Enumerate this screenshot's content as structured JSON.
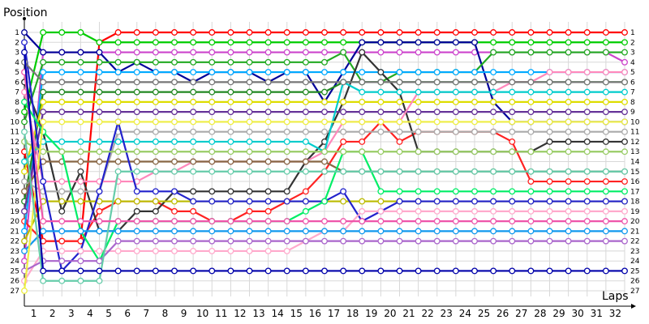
{
  "chart_data": {
    "type": "line",
    "ylabel": "Position",
    "xlabel": "Laps",
    "x": [
      0,
      1,
      2,
      3,
      4,
      5,
      6,
      7,
      8,
      9,
      10,
      11,
      12,
      13,
      14,
      15,
      16,
      17,
      18,
      19,
      20,
      21,
      22,
      23,
      24,
      25,
      26,
      27,
      28,
      29,
      30,
      31,
      32
    ],
    "x_tick_labels": [
      "1",
      "2",
      "3",
      "4",
      "5",
      "6",
      "7",
      "8",
      "9",
      "10",
      "11",
      "12",
      "13",
      "14",
      "15",
      "16",
      "17",
      "18",
      "19",
      "20",
      "21",
      "22",
      "23",
      "24",
      "25",
      "26",
      "27",
      "28",
      "29",
      "30",
      "31",
      "32"
    ],
    "y_tick_labels": [
      "1",
      "2",
      "3",
      "4",
      "5",
      "6",
      "7",
      "8",
      "9",
      "10",
      "11",
      "12",
      "13",
      "14",
      "15",
      "16",
      "17",
      "18",
      "19",
      "20",
      "21",
      "22",
      "23",
      "24",
      "25",
      "26",
      "27"
    ],
    "xlim": [
      0,
      32
    ],
    "ylim": [
      1,
      27
    ],
    "y_inverted": true,
    "grid": true,
    "series": [
      {
        "color": "#ff0000",
        "values": [
          13,
          22,
          22,
          22,
          2,
          1,
          1,
          1,
          1,
          1,
          1,
          1,
          1,
          1,
          1,
          1,
          1,
          1,
          1,
          1,
          1,
          1,
          1,
          1,
          1,
          1,
          1,
          1,
          1,
          1,
          1,
          1,
          1
        ]
      },
      {
        "color": "#00cc00",
        "values": [
          9,
          1,
          1,
          1,
          2,
          2,
          2,
          2,
          2,
          2,
          2,
          2,
          2,
          2,
          2,
          2,
          2,
          2,
          2,
          2,
          2,
          2,
          2,
          2,
          2,
          2,
          2,
          2,
          2,
          2,
          2,
          2,
          2
        ]
      },
      {
        "color": "#cc44cc",
        "values": [
          24,
          3,
          3,
          3,
          3,
          3,
          3,
          3,
          3,
          3,
          3,
          3,
          3,
          3,
          3,
          3,
          3,
          3,
          3,
          3,
          3,
          3,
          3,
          3,
          3,
          3,
          3,
          3,
          3,
          3,
          3,
          3,
          4
        ]
      },
      {
        "color": "#000099",
        "values": [
          1,
          3,
          3,
          3,
          3,
          5,
          4,
          5,
          5,
          6,
          5,
          5,
          5,
          6,
          5,
          5,
          8,
          5,
          2,
          2,
          2,
          2,
          2,
          2,
          2,
          8,
          10,
          10,
          10,
          10,
          10,
          10,
          10
        ]
      },
      {
        "color": "#ff2222",
        "values": [
          20,
          22,
          22,
          22,
          19,
          18,
          18,
          18,
          19,
          19,
          20,
          20,
          19,
          19,
          18,
          17,
          15,
          12,
          12,
          10,
          12,
          11,
          11,
          11,
          11,
          11,
          12,
          16,
          16,
          16,
          16,
          16,
          16
        ]
      },
      {
        "color": "#22aa22",
        "values": [
          10,
          4,
          4,
          4,
          4,
          4,
          4,
          4,
          4,
          4,
          4,
          4,
          4,
          4,
          4,
          4,
          4,
          3,
          6,
          6,
          5,
          5,
          5,
          5,
          5,
          3,
          3,
          3,
          3,
          3,
          3,
          3,
          3
        ]
      },
      {
        "color": "#00aaff",
        "values": [
          21,
          5,
          5,
          5,
          5,
          5,
          5,
          5,
          5,
          5,
          5,
          5,
          5,
          5,
          5,
          5,
          5,
          5,
          5,
          5,
          5,
          5,
          5,
          5,
          5,
          5,
          5,
          5,
          5,
          5,
          5,
          5,
          5
        ]
      },
      {
        "color": "#228822",
        "values": [
          18,
          7,
          7,
          7,
          7,
          7,
          7,
          7,
          7,
          7,
          7,
          7,
          7,
          7,
          7,
          7,
          7,
          6,
          6,
          6,
          6,
          6,
          6,
          6,
          6,
          6,
          6,
          6,
          6,
          6,
          6,
          6,
          6
        ]
      },
      {
        "color": "#333333",
        "values": [
          6,
          11,
          19,
          15,
          21,
          21,
          19,
          19,
          17,
          17,
          17,
          17,
          17,
          17,
          17,
          14,
          12,
          8,
          3,
          5,
          7,
          13,
          13,
          13,
          13,
          13,
          13,
          13,
          12,
          12,
          12,
          12,
          12
        ]
      },
      {
        "color": "#dddd00",
        "values": [
          15,
          8,
          8,
          8,
          8,
          8,
          8,
          8,
          8,
          8,
          8,
          8,
          8,
          8,
          8,
          8,
          8,
          8,
          8,
          8,
          8,
          8,
          8,
          8,
          8,
          8,
          8,
          8,
          8,
          8,
          8,
          8,
          8
        ]
      },
      {
        "color": "#aaaaaa",
        "values": [
          16,
          17,
          17,
          17,
          17,
          11,
          11,
          11,
          11,
          11,
          11,
          11,
          11,
          11,
          11,
          11,
          11,
          11,
          11,
          11,
          11,
          11,
          11,
          11,
          11,
          11,
          11,
          11,
          11,
          11,
          11,
          11,
          11
        ]
      },
      {
        "color": "#663399",
        "values": [
          19,
          9,
          9,
          9,
          9,
          9,
          9,
          9,
          9,
          9,
          9,
          9,
          9,
          9,
          9,
          9,
          9,
          9,
          9,
          9,
          9,
          9,
          9,
          9,
          9,
          9,
          9,
          9,
          9,
          9,
          9,
          9,
          9
        ]
      },
      {
        "color": "#ff88bb",
        "values": [
          7,
          16,
          16,
          16,
          16,
          16,
          16,
          15,
          15,
          14,
          14,
          14,
          14,
          14,
          14,
          14,
          13,
          10,
          10,
          10,
          10,
          7,
          7,
          7,
          7,
          7,
          6,
          6,
          5,
          5,
          5,
          5,
          5
        ]
      },
      {
        "color": "#00cccc",
        "values": [
          14,
          12,
          12,
          12,
          12,
          12,
          12,
          12,
          12,
          12,
          12,
          12,
          12,
          12,
          12,
          12,
          13,
          6,
          7,
          7,
          7,
          7,
          7,
          7,
          7,
          7,
          7,
          7,
          7,
          7,
          7,
          7,
          7
        ]
      },
      {
        "color": "#bbbb00",
        "values": [
          22,
          18,
          18,
          18,
          18,
          18,
          18,
          18,
          18,
          18,
          18,
          18,
          18,
          18,
          18,
          18,
          18,
          18,
          18,
          18,
          18,
          18,
          18,
          18,
          18,
          18,
          18,
          18,
          18,
          18,
          18,
          18,
          18
        ]
      },
      {
        "color": "#886644",
        "values": [
          17,
          14,
          14,
          14,
          14,
          14,
          14,
          14,
          14,
          14,
          14,
          14,
          14,
          14,
          14,
          14,
          14,
          15,
          15,
          15,
          15,
          15,
          15,
          15,
          15,
          15,
          15,
          15,
          15,
          15,
          15,
          15,
          15
        ]
      },
      {
        "color": "#2222cc",
        "values": [
          2,
          16,
          25,
          23,
          17,
          10,
          17,
          17,
          17,
          18,
          18,
          18,
          18,
          18,
          18,
          18,
          18,
          17,
          20,
          19,
          18,
          18,
          18,
          18,
          18,
          18,
          18,
          18,
          18,
          18,
          18,
          18,
          18
        ]
      },
      {
        "color": "#ffaacc",
        "values": [
          26,
          23,
          23,
          23,
          23,
          23,
          23,
          23,
          23,
          23,
          23,
          23,
          23,
          23,
          23,
          22,
          21,
          21,
          19,
          19,
          19,
          19,
          19,
          19,
          19,
          19,
          19,
          19,
          19,
          19,
          19,
          19,
          19
        ]
      },
      {
        "color": "#00ee66",
        "values": [
          8,
          11,
          13,
          21,
          24,
          20,
          20,
          20,
          20,
          20,
          20,
          20,
          20,
          20,
          20,
          19,
          18,
          13,
          13,
          17,
          17,
          17,
          17,
          17,
          17,
          17,
          17,
          17,
          17,
          17,
          17,
          17,
          17
        ]
      },
      {
        "color": "#aa66cc",
        "values": [
          25,
          24,
          24,
          24,
          24,
          22,
          22,
          22,
          22,
          22,
          22,
          22,
          22,
          22,
          22,
          22,
          22,
          22,
          22,
          22,
          22,
          22,
          22,
          22,
          22,
          22,
          22,
          22,
          22,
          22,
          22,
          22,
          22
        ]
      },
      {
        "color": "#1199ee",
        "values": [
          23,
          21,
          21,
          21,
          21,
          21,
          21,
          21,
          21,
          21,
          21,
          21,
          21,
          21,
          21,
          21,
          21,
          21,
          21,
          21,
          21,
          21,
          21,
          21,
          21,
          21,
          21,
          21,
          21,
          21,
          21,
          21,
          21
        ]
      },
      {
        "color": "#99cc66",
        "values": [
          12,
          13,
          13,
          13,
          13,
          13,
          13,
          13,
          13,
          13,
          13,
          13,
          13,
          13,
          13,
          13,
          13,
          13,
          13,
          13,
          13,
          13,
          13,
          13,
          13,
          13,
          13,
          13,
          13,
          13,
          13,
          13,
          13
        ]
      },
      {
        "color": "#eeee44",
        "values": [
          27,
          10,
          10,
          10,
          10,
          10,
          10,
          10,
          10,
          10,
          10,
          10,
          10,
          10,
          10,
          10,
          10,
          10,
          10,
          10,
          10,
          10,
          10,
          10,
          10,
          10,
          10,
          10,
          10,
          10,
          10,
          10,
          10
        ]
      },
      {
        "color": "#66ccaa",
        "values": [
          11,
          26,
          26,
          26,
          26,
          15,
          15,
          15,
          15,
          15,
          15,
          15,
          15,
          15,
          15,
          15,
          15,
          15,
          15,
          15,
          15,
          15,
          15,
          15,
          15,
          15,
          15,
          15,
          15,
          15,
          15,
          15,
          15
        ]
      },
      {
        "color": "#777777",
        "values": [
          4,
          6,
          6,
          6,
          6,
          6,
          6,
          6,
          6,
          6,
          6,
          6,
          6,
          6,
          6,
          6,
          6,
          6,
          6,
          6,
          6,
          6,
          6,
          6,
          6,
          6,
          6,
          6,
          6,
          6,
          6,
          6,
          6
        ]
      },
      {
        "color": "#ee55aa",
        "values": [
          5,
          20,
          20,
          20,
          20,
          20,
          20,
          20,
          20,
          20,
          20,
          20,
          20,
          20,
          20,
          20,
          20,
          20,
          20,
          20,
          20,
          20,
          20,
          20,
          20,
          20,
          20,
          20,
          20,
          20,
          20,
          20,
          20
        ]
      },
      {
        "color": "#0000aa",
        "values": [
          3,
          25,
          25,
          25,
          25,
          25,
          25,
          25,
          25,
          25,
          25,
          25,
          25,
          25,
          25,
          25,
          25,
          25,
          25,
          25,
          25,
          25,
          25,
          25,
          25,
          25,
          25,
          25,
          25,
          25,
          25,
          25,
          25
        ]
      }
    ]
  }
}
